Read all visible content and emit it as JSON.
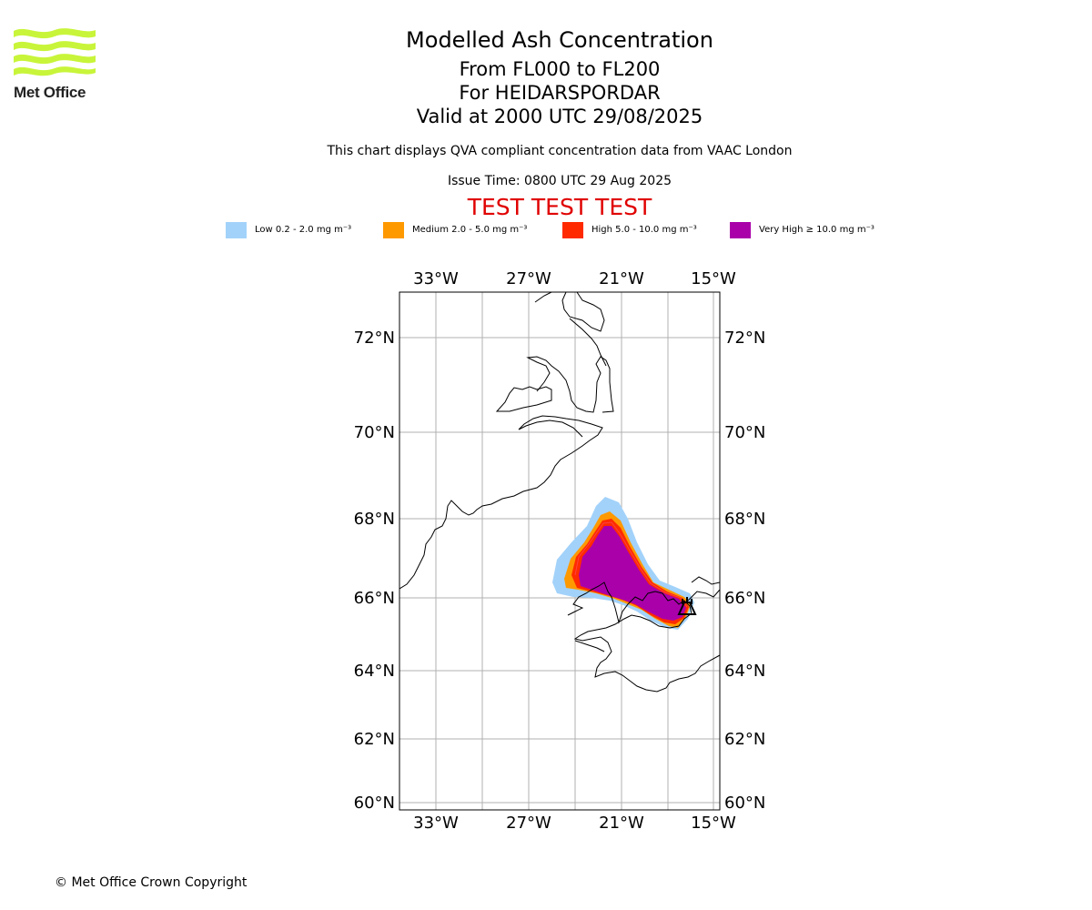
{
  "header": {
    "logo_text": "Met Office",
    "title": "Modelled Ash Concentration",
    "levels": "From FL000 to FL200",
    "volcano": "For HEIDARSPORDAR",
    "valid": "Valid at 2000 UTC 29/08/2025",
    "compliance_note": "This chart displays QVA compliant concentration data from VAAC London",
    "issue_time": "Issue Time: 0800 UTC 29 Aug 2025",
    "test_banner": "TEST TEST TEST"
  },
  "legend": [
    {
      "label": "Low 0.2 - 2.0 mg m⁻³",
      "color": "#a2d2fa"
    },
    {
      "label": "Medium 2.0 - 5.0 mg m⁻³",
      "color": "#ff9900"
    },
    {
      "label": "High 5.0 - 10.0 mg m⁻³",
      "color": "#ff2a00"
    },
    {
      "label": "Very High ≥ 10.0 mg m⁻³",
      "color": "#aa00aa"
    }
  ],
  "map": {
    "lon_ticks": [
      "33°W",
      "27°W",
      "21°W",
      "15°W"
    ],
    "lat_ticks": [
      "72°N",
      "70°N",
      "68°N",
      "66°N",
      "64°N",
      "62°N",
      "60°N"
    ],
    "gridlines": true,
    "volcano_icon": "volcano-icon"
  },
  "footer": {
    "copyright": "© Met Office Crown Copyright"
  }
}
